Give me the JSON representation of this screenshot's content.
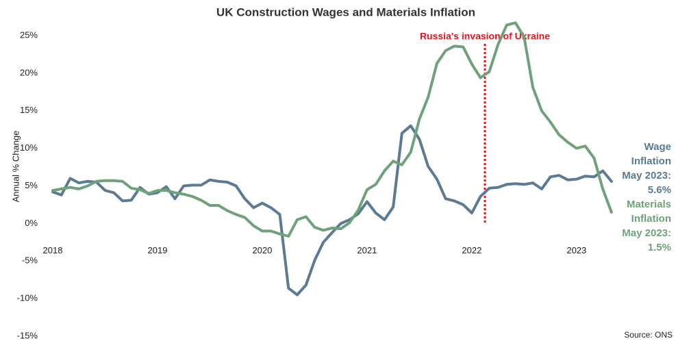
{
  "chart_data": {
    "type": "line",
    "title": "UK Construction Wages and Materials Inflation",
    "y_label": "Annual % Change",
    "source": "Source: ONS",
    "x": [
      2018,
      2018.083,
      2018.167,
      2018.25,
      2018.333,
      2018.417,
      2018.5,
      2018.583,
      2018.667,
      2018.75,
      2018.833,
      2018.917,
      2019,
      2019.083,
      2019.167,
      2019.25,
      2019.333,
      2019.417,
      2019.5,
      2019.583,
      2019.667,
      2019.75,
      2019.833,
      2019.917,
      2020,
      2020.083,
      2020.167,
      2020.25,
      2020.333,
      2020.417,
      2020.5,
      2020.583,
      2020.667,
      2020.75,
      2020.833,
      2020.917,
      2021,
      2021.083,
      2021.167,
      2021.25,
      2021.333,
      2021.417,
      2021.5,
      2021.583,
      2021.667,
      2021.75,
      2021.833,
      2021.917,
      2022,
      2022.083,
      2022.167,
      2022.25,
      2022.333,
      2022.417,
      2022.5,
      2022.583,
      2022.667,
      2022.75,
      2022.833,
      2022.917,
      2023,
      2023.083,
      2023.167,
      2023.25,
      2023.333
    ],
    "series": [
      {
        "name": "Wage Inflation",
        "color": "#5b7a94",
        "values": [
          4.2,
          3.8,
          6.0,
          5.4,
          5.6,
          5.5,
          4.4,
          4.1,
          3.0,
          3.1,
          4.8,
          3.9,
          4.1,
          4.9,
          3.3,
          5.0,
          5.1,
          5.1,
          5.8,
          5.6,
          5.5,
          5.0,
          3.3,
          2.1,
          2.7,
          2.1,
          1.2,
          -8.6,
          -9.5,
          -8.2,
          -4.9,
          -2.5,
          -1.2,
          0.0,
          0.5,
          1.3,
          2.9,
          1.4,
          0.5,
          2.2,
          12.0,
          13.0,
          11.2,
          7.6,
          5.9,
          3.3,
          3.0,
          2.5,
          1.4,
          3.6,
          4.7,
          4.8,
          5.2,
          5.3,
          5.2,
          5.4,
          4.6,
          6.2,
          6.4,
          5.8,
          5.9,
          6.3,
          6.2,
          7.0,
          5.6
        ]
      },
      {
        "name": "Materials Inflation",
        "color": "#6fa27a",
        "values": [
          4.4,
          4.6,
          4.8,
          4.6,
          5.0,
          5.6,
          5.7,
          5.7,
          5.6,
          4.7,
          4.5,
          4.0,
          4.4,
          4.4,
          4.1,
          3.9,
          3.6,
          3.1,
          2.4,
          2.4,
          1.7,
          1.2,
          0.8,
          -0.3,
          -1.0,
          -1.0,
          -1.4,
          -1.7,
          0.5,
          0.9,
          -0.5,
          -0.9,
          -0.6,
          -0.7,
          0.1,
          1.8,
          4.5,
          5.2,
          7.0,
          8.3,
          7.8,
          9.5,
          13.9,
          16.8,
          21.3,
          23.0,
          23.6,
          23.5,
          21.2,
          19.4,
          20.2,
          23.8,
          26.4,
          26.7,
          24.8,
          18.1,
          15.0,
          13.5,
          11.8,
          10.8,
          10.0,
          10.3,
          8.7,
          4.6,
          1.5
        ]
      }
    ],
    "end_labels": [
      {
        "lines": [
          "Wage",
          "Inflation",
          "May 2023:",
          "5.6%"
        ],
        "color": "#5b7a94"
      },
      {
        "lines": [
          "Materials",
          "Inflation",
          "May 2023:",
          "1.5%"
        ],
        "color": "#6fa27a"
      }
    ],
    "event": {
      "label": "Russia's invasion of Ukraine",
      "x": 2022.125,
      "color": "#e8141b"
    },
    "xlim": [
      2018,
      2023.4
    ],
    "xticks": [
      2018,
      2019,
      2020,
      2021,
      2022,
      2023
    ],
    "ylim": [
      -15,
      25
    ],
    "yticks": [
      {
        "value": -15,
        "label": "-15%"
      },
      {
        "value": -10,
        "label": "-10%"
      },
      {
        "value": -5,
        "label": "-5%"
      },
      {
        "value": 0,
        "label": "0%"
      },
      {
        "value": 5,
        "label": "5%"
      },
      {
        "value": 10,
        "label": "10%"
      },
      {
        "value": 15,
        "label": "15%"
      },
      {
        "value": 20,
        "label": "20%"
      },
      {
        "value": 25,
        "label": "25%"
      }
    ],
    "grid": false
  }
}
